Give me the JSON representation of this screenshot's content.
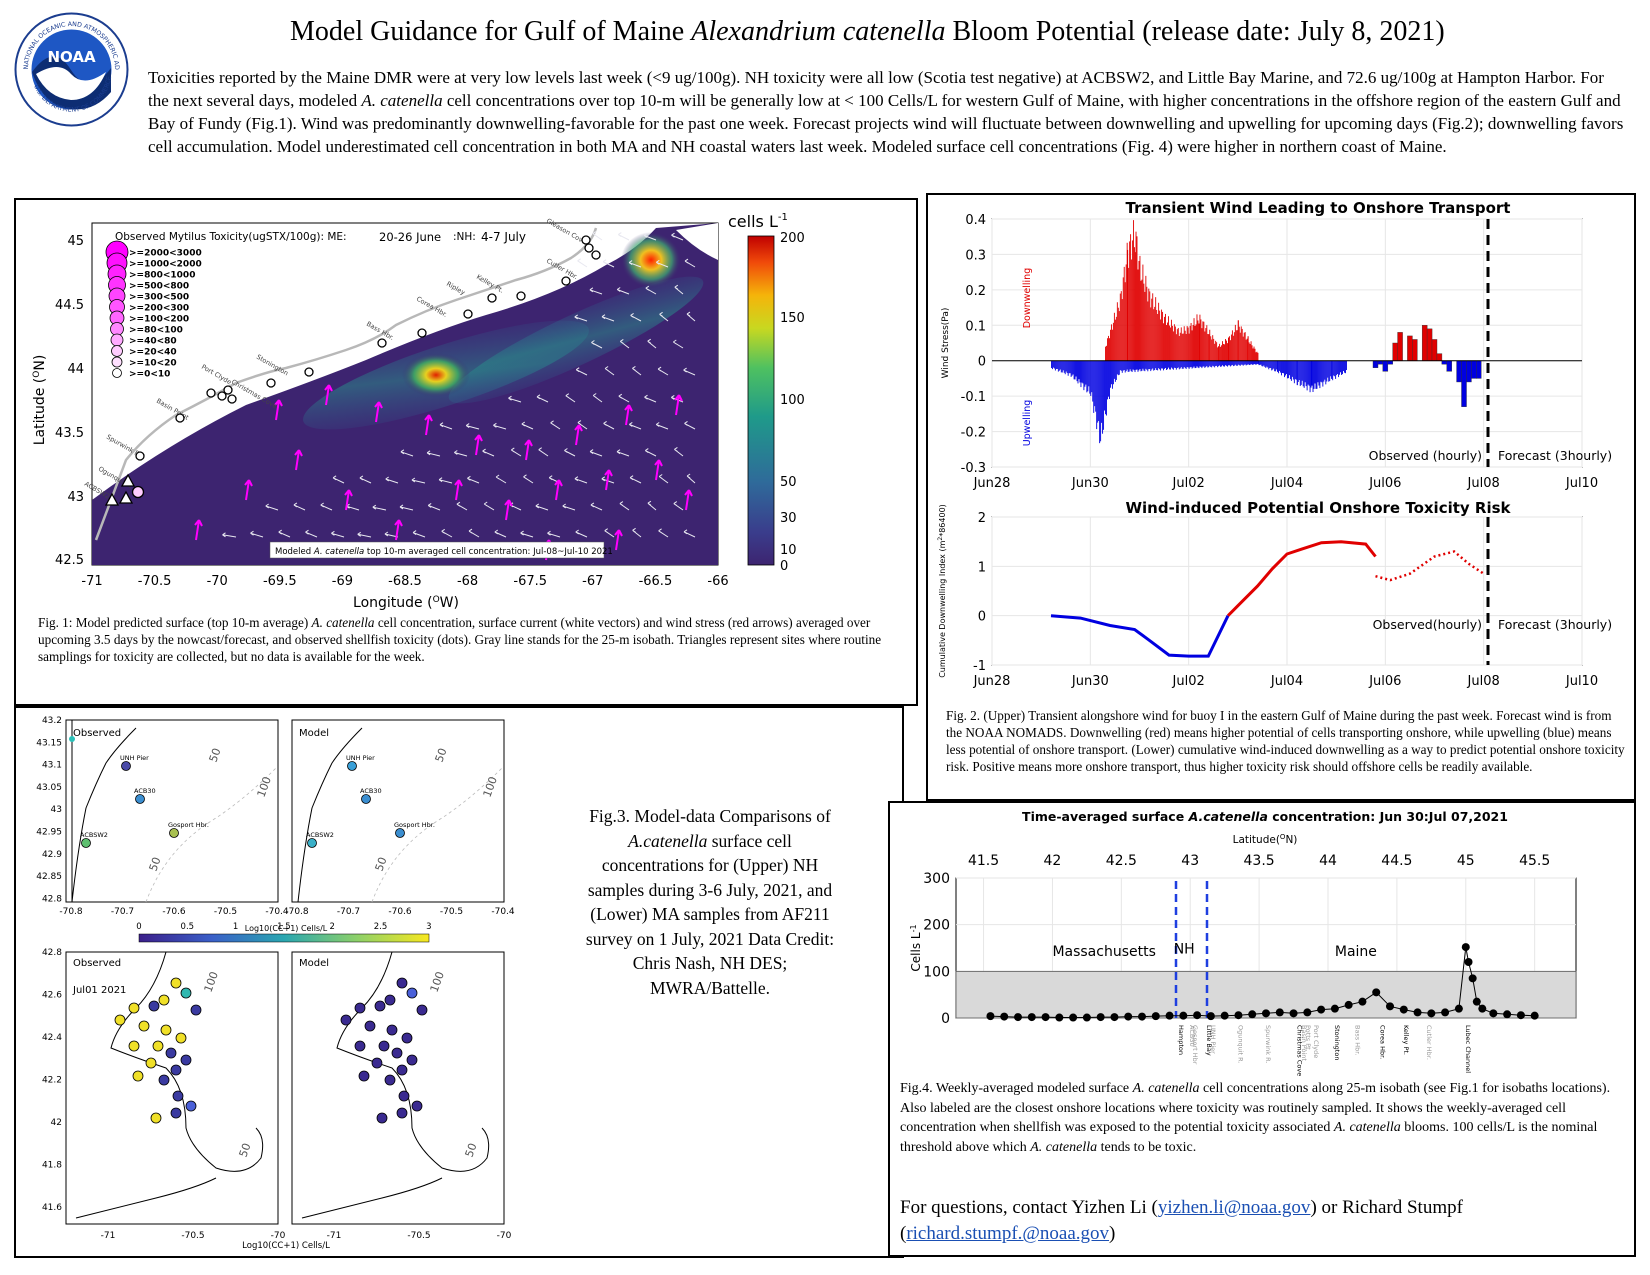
{
  "header": {
    "title_pre": "Model Guidance for Gulf of Maine ",
    "title_species": "Alexandrium catenella",
    "title_post": " Bloom Potential (release date: July 8, 2021)",
    "logo_text": "NOAA",
    "logo_ring_top": "NATIONAL OCEANIC AND ATMOSPHERIC ADMINISTRATION",
    "logo_ring_bottom": "U.S. DEPARTMENT OF COMMERCE",
    "intro_1": "Toxicities reported by the Maine DMR were at very low levels last week (<9 ug/100g). NH toxicity were all low (Scotia test negative) at ACBSW2, and Little Bay Marine, and 72.6 ug/100g at Hampton Harbor. For the next several days, modeled ",
    "intro_species": "A. catenella",
    "intro_2": " cell concentrations over top 10-m will be generally low at < 100 Cells/L for western Gulf of Maine, with higher concentrations in the offshore region of the eastern Gulf and Bay of Fundy (Fig.1). Wind was predominantly downwelling-favorable for the past one week. Forecast projects wind will fluctuate between downwelling and upwelling for upcoming days (Fig.2); downwelling favors cell accumulation. Model underestimated cell concentration in both MA and NH coastal waters last week. Modeled surface cell concentrations (Fig. 4) were higher in northern coast of Maine."
  },
  "fig1": {
    "legend_title": "Observed Mytilus Toxicity(ugSTX/100g):  ME:",
    "legend_me_dates": "20-26 June",
    "legend_nh": ":NH:",
    "legend_nh_dates": "4-7 July",
    "legend_classes": [
      ">=2000<3000",
      ">=1000<2000",
      ">=800<1000",
      ">=500<800",
      ">=300<500",
      ">=200<300",
      ">=100<200",
      ">=80<100",
      ">=40<80",
      ">=20<40",
      ">=10<20",
      ">=0<10"
    ],
    "colorbar_label": "cells L",
    "colorbar_exp": "-1",
    "colorbar_ticks": [
      "200",
      "150",
      "100",
      "50",
      "30",
      "10",
      "0"
    ],
    "ylabel": "Latitude (",
    "ylabel_sup": "O",
    "ylabel_end": "N)",
    "xlabel": "Longitude (",
    "xlabel_sup": "O",
    "xlabel_end": "W)",
    "y_ticks": [
      "45",
      "44.5",
      "44",
      "43.5",
      "43",
      "42.5"
    ],
    "x_ticks": [
      "-71",
      "-70.5",
      "-70",
      "-69.5",
      "-69",
      "-68.5",
      "-68",
      "-67.5",
      "-67",
      "-66.5",
      "-66"
    ],
    "place_labels": [
      "Gleason Cove",
      "Cutler Hbr.",
      "Kelley Pt.",
      "Ripley",
      "Corea Hbr.",
      "Bass Hbr.",
      "Stonington",
      "Port Clyde",
      "Christmas Cove",
      "Basin Point",
      "Spurwink R.",
      "Ogunquit R.",
      "ACBSW2",
      "Hampton"
    ],
    "map_note_pre": "Modeled ",
    "map_note_species": "A. catenella",
    "map_note_post": " top 10-m averaged cell concentration:  Jul-08~Jul-10 2021",
    "caption_pre": "Fig. 1: Model predicted surface (top 10-m average) ",
    "caption_species": "A. catenella",
    "caption_post": " cell concentration, surface current (white vectors) and wind stress (red arrows) averaged over upcoming 3.5 days by the nowcast/forecast, and observed shellfish toxicity (dots). Gray line stands for the 25-m isobath. Triangles represent sites where routine samplings for toxicity are collected, but no data is available for the week."
  },
  "fig2": {
    "upper_title": "Transient Wind Leading to Onshore Transport",
    "upper_ylabel": "Wind Stress(Pa)",
    "downwelling_label": "Downwelling",
    "upwelling_label": "Upwelling",
    "upper_y_ticks": [
      "0.4",
      "0.3",
      "0.2",
      "0.1",
      "0",
      "-0.1",
      "-0.2",
      "-0.3"
    ],
    "x_ticks": [
      "Jun28",
      "Jun30",
      "Jul02",
      "Jul04",
      "Jul06",
      "Jul08",
      "Jul10"
    ],
    "upper_observed_label": "Observed (hourly)",
    "upper_forecast_label": "Forecast (3hourly)",
    "lower_title": "Wind-induced Potential Onshore Toxicity Risk",
    "lower_ylabel": "Cumulative Downwelling Index (m",
    "lower_ylabel_sup": "2",
    "lower_ylabel_end": "*86400)",
    "lower_y_ticks": [
      "2",
      "1",
      "0",
      "-1"
    ],
    "lower_observed_label": "Observed(hourly)",
    "lower_forecast_label": "Forecast (3hourly)",
    "caption": "Fig. 2. (Upper) Transient alongshore wind for buoy I in the eastern Gulf of Maine during the past week. Forecast wind is from the NOAA NOMADS. Downwelling (red) means higher potential of cells transporting onshore, while upwelling (blue) means less potential of onshore transport. (Lower) cumulative wind-induced downwelling as a way to predict potential onshore toxicity risk. Positive means more onshore transport, thus higher toxicity risk should offshore cells be readily available."
  },
  "fig3": {
    "observed_label": "Observed",
    "model_label": "Model",
    "date_label": "Jul01 2021",
    "nh_sites": [
      "UNH Pier",
      "ACB30",
      "Gosport Hbr.",
      "ACBSW2"
    ],
    "upper_y_ticks": [
      "43.2",
      "43.15",
      "43.1",
      "43.05",
      "43",
      "42.95",
      "42.9",
      "42.85",
      "42.8"
    ],
    "upper_x_ticks": [
      "-70.8",
      "-70.7",
      "-70.6",
      "-70.5",
      "-70.4"
    ],
    "lower_y_ticks": [
      "42.8",
      "42.6",
      "42.4",
      "42.2",
      "42",
      "41.8",
      "41.6"
    ],
    "lower_x_ticks": [
      "-71",
      "-70.5",
      "-70"
    ],
    "isobath_labels": [
      "50",
      "100"
    ],
    "colorbar_title": "Log10(CC+1) Cells/L",
    "colorbar_ticks": [
      "0",
      "0.5",
      "1",
      "1.5",
      "2",
      "2.5",
      "3"
    ],
    "bottom_xlabel": "Log10(CC+1) Cells/L",
    "caption_1": "Fig.3. Model-data Comparisons of ",
    "caption_species": "A.catenella",
    "caption_2": " surface cell concentrations for (Upper) NH samples during 3-6 July, 2021, and (Lower) MA samples from AF211 survey on 1 July, 2021 Data Credit: Chris Nash, NH DES; MWRA/Battelle."
  },
  "fig4": {
    "title_pre": "Time-averaged surface ",
    "title_species": "A.catenella",
    "title_post": " concentration: Jun 30:Jul 07,2021",
    "top_axis_label": "Latitude(",
    "top_axis_sup": "O",
    "top_axis_end": "N)",
    "top_ticks": [
      "41.5",
      "42",
      "42.5",
      "43",
      "43.5",
      "44",
      "44.5",
      "45",
      "45.5"
    ],
    "ylabel": "Cells L",
    "ylabel_sup": "-1",
    "y_ticks": [
      "300",
      "200",
      "100",
      "0"
    ],
    "region_labels": [
      "Massachusetts",
      "NH",
      "Maine"
    ],
    "site_labels": [
      "Hampton",
      "ACB30",
      "Gosport Hbr",
      "Little Bay",
      "UNH Pier",
      "Ogunquit R.",
      "Spurwink R.",
      "Christmas Cove",
      "Basin Point",
      "Potts Pt.",
      "Port Clyde",
      "Stonington",
      "Bass Hbr.",
      "Corea Hbr.",
      "Kelley Pt.",
      "Cutler Hbr.",
      "Lubec Channel"
    ],
    "caption_pre": "Fig.4. Weekly-averaged modeled surface ",
    "caption_species": "A. catenella",
    "caption_mid": " cell concentrations along 25-m isobath (see Fig.1 for isobaths locations). Also labeled are the closest onshore locations where toxicity was routinely sampled. It shows the weekly-averaged cell concentration when shellfish was exposed to the potential toxicity associated ",
    "caption_species2": "A. catenella",
    "caption_mid2": " blooms. 100 cells/L is the nominal threshold above which ",
    "caption_species3": "A. catenella",
    "caption_end": " tends to be toxic."
  },
  "contact": {
    "text_1": "For questions, contact Yizhen Li (",
    "email_1": "yizhen.li@noaa.gov",
    "text_2": ") or Richard Stumpf (",
    "email_2": "richard.stumpf.@noaa.gov",
    "text_3": ")"
  },
  "colors": {
    "downwelling": "#e00000",
    "upwelling": "#0000e0",
    "magenta": "#ff00ff",
    "map_bg": "#3d2470",
    "threshold_fill": "#d9d9d9",
    "nh_divider": "#1f3fe0"
  },
  "chart_data": [
    {
      "type": "bar",
      "title": "Transient Wind Leading to Onshore Transport",
      "ylabel": "Wind Stress(Pa)",
      "ylim": [
        -0.3,
        0.4
      ],
      "x_range": [
        "Jun28",
        "Jul10"
      ],
      "forecast_start": "Jul07 18:00",
      "series": [
        {
          "name": "Downwelling",
          "x_days": [
            2.3,
            2.6,
            2.75,
            2.9,
            3.0,
            3.2,
            3.5,
            3.8,
            4.0,
            4.2,
            4.4,
            4.6,
            4.8,
            5.0,
            5.2,
            5.4
          ],
          "values": [
            0.04,
            0.17,
            0.3,
            0.36,
            0.26,
            0.18,
            0.12,
            0.08,
            0.09,
            0.12,
            0.08,
            0.04,
            0.06,
            0.1,
            0.06,
            0.02
          ]
        },
        {
          "name": "Upwelling",
          "x_days": [
            1.2,
            1.6,
            2.0,
            2.2,
            2.4,
            2.6,
            5.4,
            5.8,
            6.2,
            6.5,
            6.9,
            7.2
          ],
          "values": [
            -0.02,
            -0.04,
            -0.09,
            -0.22,
            -0.08,
            -0.03,
            -0.01,
            -0.03,
            -0.06,
            -0.08,
            -0.05,
            -0.03
          ]
        },
        {
          "name": "Forecast",
          "x_days": [
            7.8,
            7.9,
            8.0,
            8.1,
            8.2,
            8.3,
            8.5,
            8.6,
            8.8,
            8.9,
            9.0,
            9.1,
            9.2,
            9.3,
            9.5,
            9.6,
            9.7,
            9.8,
            9.9
          ],
          "values": [
            -0.02,
            -0.01,
            -0.03,
            -0.01,
            0.05,
            0.08,
            0.07,
            0.06,
            0.1,
            0.09,
            0.06,
            0.02,
            -0.01,
            -0.03,
            -0.06,
            -0.13,
            -0.06,
            -0.05,
            -0.05
          ]
        }
      ]
    },
    {
      "type": "line",
      "title": "Wind-induced Potential Onshore Toxicity Risk",
      "ylim": [
        -1,
        2
      ],
      "x_range": [
        "Jun28",
        "Jul10"
      ],
      "series": [
        {
          "name": "Observed(hourly)",
          "x_days": [
            1.2,
            1.8,
            2.4,
            2.9,
            3.2,
            3.6,
            4.0,
            4.4,
            4.8,
            5.0,
            5.4,
            5.7,
            6.0,
            6.3,
            6.7,
            7.1,
            7.6,
            7.8
          ],
          "values": [
            0.0,
            -0.05,
            -0.2,
            -0.28,
            -0.5,
            -0.8,
            -0.82,
            -0.82,
            -0.0,
            0.2,
            0.6,
            0.95,
            1.25,
            1.35,
            1.48,
            1.5,
            1.45,
            1.2
          ]
        },
        {
          "name": "Forecast (3hourly)",
          "x_days": [
            7.8,
            8.1,
            8.5,
            9.0,
            9.4,
            9.7,
            10.0
          ],
          "values": [
            0.8,
            0.72,
            0.85,
            1.2,
            1.3,
            1.05,
            0.85
          ]
        }
      ]
    },
    {
      "type": "scatter",
      "title": "Time-averaged surface A.catenella concentration: Jun 30:Jul 07,2021",
      "xlabel": "Latitude(oN)",
      "ylabel": "Cells L-1",
      "xlim": [
        41.3,
        45.8
      ],
      "ylim": [
        0,
        300
      ],
      "threshold": 100,
      "x": [
        41.55,
        41.65,
        41.75,
        41.85,
        41.95,
        42.05,
        42.15,
        42.25,
        42.35,
        42.45,
        42.55,
        42.65,
        42.75,
        42.85,
        42.95,
        43.05,
        43.15,
        43.25,
        43.35,
        43.45,
        43.55,
        43.65,
        43.75,
        43.85,
        43.95,
        44.05,
        44.15,
        44.25,
        44.35,
        44.45,
        44.55,
        44.65,
        44.75,
        44.85,
        44.95,
        45.0,
        45.02,
        45.05,
        45.08,
        45.12,
        45.2,
        45.3,
        45.4,
        45.5
      ],
      "y": [
        4,
        3,
        2,
        2,
        2,
        1,
        1,
        1,
        2,
        2,
        3,
        3,
        4,
        5,
        5,
        6,
        4,
        5,
        6,
        8,
        10,
        12,
        10,
        12,
        18,
        20,
        28,
        35,
        55,
        25,
        18,
        12,
        10,
        12,
        20,
        152,
        120,
        85,
        35,
        20,
        10,
        8,
        6,
        5
      ]
    }
  ]
}
